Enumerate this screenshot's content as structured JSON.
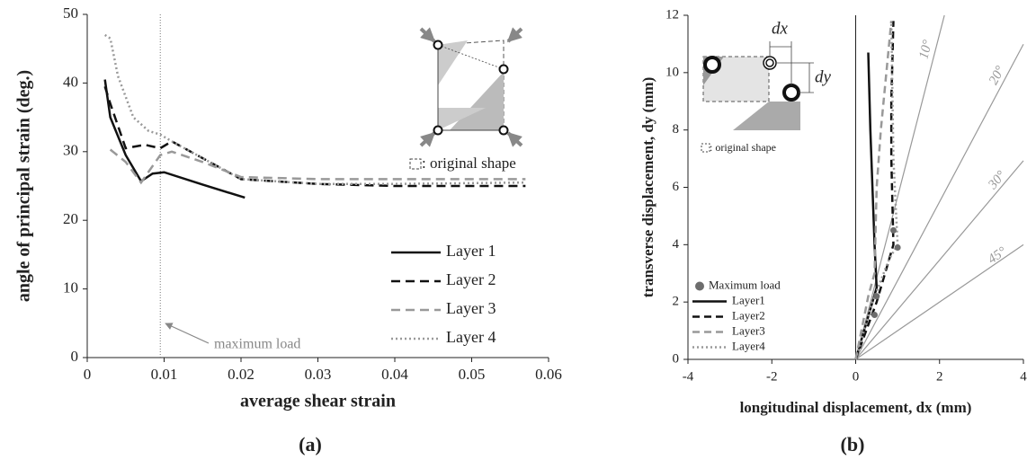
{
  "chart_data": [
    {
      "type": "line",
      "panel_label": "(a)",
      "x_label": "average shear strain",
      "y_label": "angle of principal strain  (deg.)",
      "xlim": [
        0,
        0.06
      ],
      "xticks": [
        0,
        0.01,
        0.02,
        0.03,
        0.04,
        0.05,
        0.06
      ],
      "ylim": [
        0,
        50
      ],
      "yticks": [
        0,
        10,
        20,
        30,
        40,
        50
      ],
      "legend": "lower right",
      "series": [
        {
          "name": "Layer 1",
          "color": "#111111",
          "dash": "none",
          "x": [
            0.0023,
            0.003,
            0.005,
            0.007,
            0.0085,
            0.01,
            0.015,
            0.0205
          ],
          "values": [
            40.5,
            35,
            29.5,
            25.7,
            26.8,
            27,
            25.2,
            23.3
          ]
        },
        {
          "name": "Layer 2",
          "color": "#111111",
          "dash": "10,6",
          "x": [
            0.0023,
            0.003,
            0.005,
            0.0075,
            0.0095,
            0.011,
            0.02,
            0.03,
            0.04,
            0.057
          ],
          "values": [
            39.5,
            37,
            30.5,
            31,
            30.5,
            31.5,
            26,
            25.3,
            25,
            25
          ]
        },
        {
          "name": "Layer 3",
          "color": "#999999",
          "dash": "10,6",
          "x": [
            0.003,
            0.005,
            0.007,
            0.0095,
            0.011,
            0.015,
            0.02,
            0.03,
            0.057
          ],
          "values": [
            30.3,
            28.5,
            25.5,
            29.5,
            30,
            28.5,
            26.3,
            26,
            26
          ]
        },
        {
          "name": "Layer 4",
          "color": "#999999",
          "dash": "2,3",
          "x": [
            0.0023,
            0.003,
            0.004,
            0.006,
            0.008,
            0.0095,
            0.011,
            0.02,
            0.03,
            0.04,
            0.057
          ],
          "values": [
            47,
            46.5,
            41,
            35,
            33,
            32.5,
            31.5,
            26,
            25.3,
            25.3,
            25.5
          ]
        }
      ],
      "annotation": {
        "text": "maximum load",
        "x": 0.0095
      },
      "inset_note": ": original shape"
    },
    {
      "type": "line",
      "panel_label": "(b)",
      "x_label": "longitudinal displacement, dx (mm)",
      "y_label": "transverse displacement, dy  (mm)",
      "xlim": [
        -4,
        4
      ],
      "xticks": [
        -4,
        -2,
        0,
        2,
        4
      ],
      "ylim": [
        0,
        12
      ],
      "yticks": [
        0,
        2,
        4,
        6,
        8,
        10,
        12
      ],
      "legend": "lower left",
      "markers": {
        "name": "Maximum load",
        "color": "#6d6d6d",
        "x": [
          0.45,
          0.5,
          0.9,
          1.0
        ],
        "values": [
          1.55,
          2.2,
          4.5,
          3.9
        ]
      },
      "series": [
        {
          "name": "Layer1",
          "color": "#111111",
          "dash": "none",
          "x": [
            0,
            0.3,
            0.5,
            0.45,
            0.4,
            0.35,
            0.3
          ],
          "values": [
            0,
            1.5,
            2.5,
            4,
            6,
            8,
            10.7
          ]
        },
        {
          "name": "Layer2",
          "color": "#111111",
          "dash": "8,5",
          "x": [
            0,
            0.5,
            0.7,
            0.9,
            0.85,
            0.85,
            0.9
          ],
          "values": [
            0,
            2,
            3,
            4,
            7,
            9,
            11.8
          ]
        },
        {
          "name": "Layer3",
          "color": "#999999",
          "dash": "8,5",
          "x": [
            0,
            0.3,
            0.45,
            0.5,
            0.6,
            0.85
          ],
          "values": [
            0,
            2.2,
            3,
            6,
            8,
            11.8
          ]
        },
        {
          "name": "Layer4",
          "color": "#999999",
          "dash": "2,3",
          "x": [
            0,
            0.4,
            0.8,
            1.0,
            0.9,
            0.85
          ],
          "values": [
            0,
            2,
            3.5,
            4,
            7,
            11.8
          ]
        }
      ],
      "ref_lines": [
        {
          "angle": 10,
          "label": "10°"
        },
        {
          "angle": 20,
          "label": "20°"
        },
        {
          "angle": 30,
          "label": "30°"
        },
        {
          "angle": 45,
          "label": "45°"
        }
      ],
      "inset_labels": {
        "dx": "dx",
        "dy": "dy"
      },
      "inset_note": ": original shape"
    }
  ]
}
